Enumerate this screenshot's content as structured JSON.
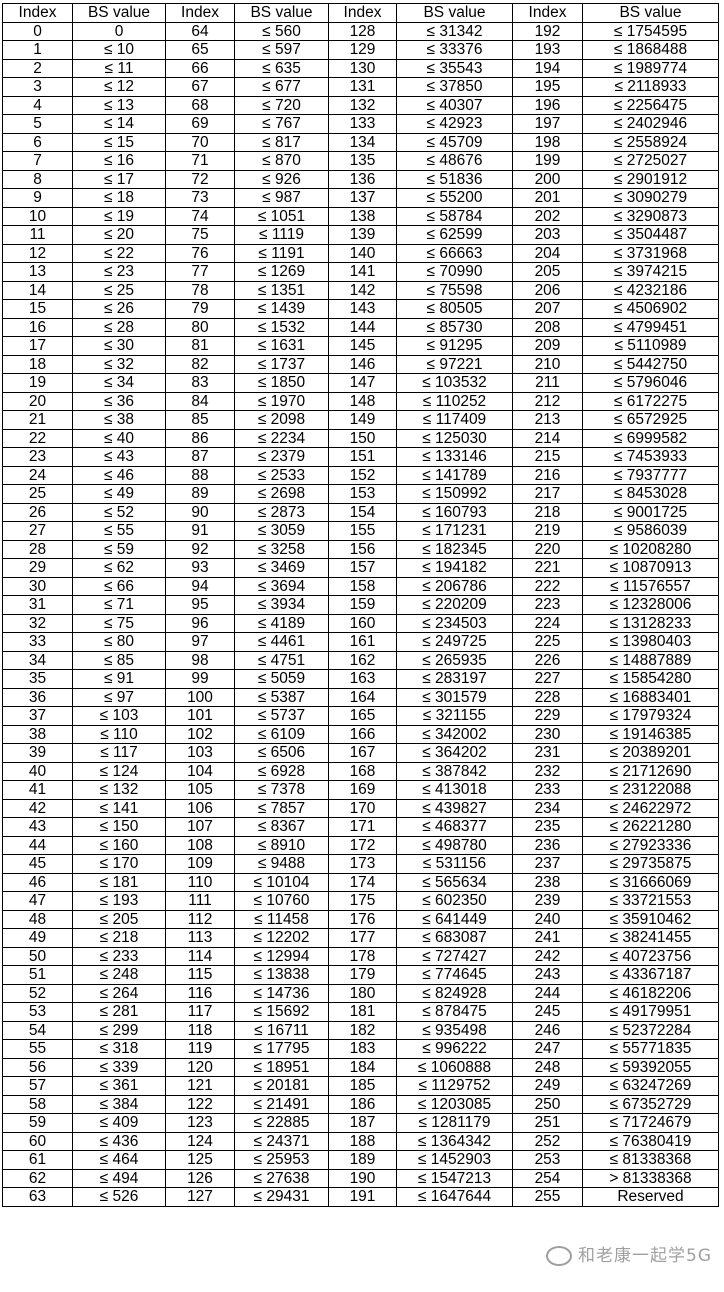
{
  "table": {
    "headers": [
      "Index",
      "BS value",
      "Index",
      "BS value",
      "Index",
      "BS value",
      "Index",
      "BS value"
    ],
    "groups": [
      {
        "indexes": [
          0,
          1,
          2,
          3,
          4,
          5,
          6,
          7,
          8,
          9,
          10,
          11,
          12,
          13,
          14,
          15,
          16,
          17,
          18,
          19,
          20,
          21,
          22,
          23,
          24,
          25,
          26,
          27,
          28,
          29,
          30,
          31,
          32,
          33,
          34,
          35,
          36,
          37,
          38,
          39,
          40,
          41,
          42,
          43,
          44,
          45,
          46,
          47,
          48,
          49,
          50,
          51,
          52,
          53,
          54,
          55,
          56,
          57,
          58,
          59,
          60,
          61,
          62,
          63
        ],
        "bs": [
          "0",
          "≤ 10",
          "≤ 11",
          "≤ 12",
          "≤ 13",
          "≤ 14",
          "≤ 15",
          "≤ 16",
          "≤ 17",
          "≤ 18",
          "≤ 19",
          "≤ 20",
          "≤ 22",
          "≤ 23",
          "≤ 25",
          "≤ 26",
          "≤ 28",
          "≤ 30",
          "≤ 32",
          "≤ 34",
          "≤ 36",
          "≤ 38",
          "≤ 40",
          "≤ 43",
          "≤ 46",
          "≤ 49",
          "≤ 52",
          "≤ 55",
          "≤ 59",
          "≤ 62",
          "≤ 66",
          "≤ 71",
          "≤ 75",
          "≤ 80",
          "≤ 85",
          "≤ 91",
          "≤ 97",
          "≤ 103",
          "≤ 110",
          "≤ 117",
          "≤ 124",
          "≤ 132",
          "≤ 141",
          "≤ 150",
          "≤ 160",
          "≤ 170",
          "≤ 181",
          "≤ 193",
          "≤ 205",
          "≤ 218",
          "≤ 233",
          "≤ 248",
          "≤ 264",
          "≤ 281",
          "≤ 299",
          "≤ 318",
          "≤ 339",
          "≤ 361",
          "≤ 384",
          "≤ 409",
          "≤ 436",
          "≤ 464",
          "≤ 494",
          "≤ 526"
        ]
      },
      {
        "indexes": [
          64,
          65,
          66,
          67,
          68,
          69,
          70,
          71,
          72,
          73,
          74,
          75,
          76,
          77,
          78,
          79,
          80,
          81,
          82,
          83,
          84,
          85,
          86,
          87,
          88,
          89,
          90,
          91,
          92,
          93,
          94,
          95,
          96,
          97,
          98,
          99,
          100,
          101,
          102,
          103,
          104,
          105,
          106,
          107,
          108,
          109,
          110,
          111,
          112,
          113,
          114,
          115,
          116,
          117,
          118,
          119,
          120,
          121,
          122,
          123,
          124,
          125,
          126,
          127
        ],
        "bs": [
          "≤ 560",
          "≤ 597",
          "≤ 635",
          "≤ 677",
          "≤ 720",
          "≤ 767",
          "≤ 817",
          "≤ 870",
          "≤ 926",
          "≤ 987",
          "≤ 1051",
          "≤ 1119",
          "≤ 1191",
          "≤ 1269",
          "≤ 1351",
          "≤ 1439",
          "≤ 1532",
          "≤ 1631",
          "≤ 1737",
          "≤ 1850",
          "≤ 1970",
          "≤ 2098",
          "≤ 2234",
          "≤ 2379",
          "≤ 2533",
          "≤ 2698",
          "≤ 2873",
          "≤ 3059",
          "≤ 3258",
          "≤ 3469",
          "≤ 3694",
          "≤ 3934",
          "≤ 4189",
          "≤ 4461",
          "≤ 4751",
          "≤ 5059",
          "≤ 5387",
          "≤ 5737",
          "≤ 6109",
          "≤ 6506",
          "≤ 6928",
          "≤ 7378",
          "≤ 7857",
          "≤ 8367",
          "≤ 8910",
          "≤ 9488",
          "≤ 10104",
          "≤ 10760",
          "≤ 11458",
          "≤ 12202",
          "≤ 12994",
          "≤ 13838",
          "≤ 14736",
          "≤ 15692",
          "≤ 16711",
          "≤ 17795",
          "≤ 18951",
          "≤ 20181",
          "≤ 21491",
          "≤ 22885",
          "≤ 24371",
          "≤ 25953",
          "≤ 27638",
          "≤ 29431"
        ]
      },
      {
        "indexes": [
          128,
          129,
          130,
          131,
          132,
          133,
          134,
          135,
          136,
          137,
          138,
          139,
          140,
          141,
          142,
          143,
          144,
          145,
          146,
          147,
          148,
          149,
          150,
          151,
          152,
          153,
          154,
          155,
          156,
          157,
          158,
          159,
          160,
          161,
          162,
          163,
          164,
          165,
          166,
          167,
          168,
          169,
          170,
          171,
          172,
          173,
          174,
          175,
          176,
          177,
          178,
          179,
          180,
          181,
          182,
          183,
          184,
          185,
          186,
          187,
          188,
          189,
          190,
          191
        ],
        "bs": [
          "≤ 31342",
          "≤ 33376",
          "≤ 35543",
          "≤ 37850",
          "≤ 40307",
          "≤ 42923",
          "≤ 45709",
          "≤ 48676",
          "≤ 51836",
          "≤ 55200",
          "≤ 58784",
          "≤ 62599",
          "≤ 66663",
          "≤ 70990",
          "≤ 75598",
          "≤ 80505",
          "≤ 85730",
          "≤ 91295",
          "≤ 97221",
          "≤ 103532",
          "≤ 110252",
          "≤ 117409",
          "≤ 125030",
          "≤ 133146",
          "≤ 141789",
          "≤ 150992",
          "≤ 160793",
          "≤ 171231",
          "≤ 182345",
          "≤ 194182",
          "≤ 206786",
          "≤ 220209",
          "≤ 234503",
          "≤ 249725",
          "≤ 265935",
          "≤ 283197",
          "≤ 301579",
          "≤ 321155",
          "≤ 342002",
          "≤ 364202",
          "≤ 387842",
          "≤ 413018",
          "≤ 439827",
          "≤ 468377",
          "≤ 498780",
          "≤ 531156",
          "≤ 565634",
          "≤ 602350",
          "≤ 641449",
          "≤ 683087",
          "≤ 727427",
          "≤ 774645",
          "≤ 824928",
          "≤ 878475",
          "≤ 935498",
          "≤ 996222",
          "≤ 1060888",
          "≤ 1129752",
          "≤ 1203085",
          "≤ 1281179",
          "≤ 1364342",
          "≤ 1452903",
          "≤ 1547213",
          "≤ 1647644"
        ]
      },
      {
        "indexes": [
          192,
          193,
          194,
          195,
          196,
          197,
          198,
          199,
          200,
          201,
          202,
          203,
          204,
          205,
          206,
          207,
          208,
          209,
          210,
          211,
          212,
          213,
          214,
          215,
          216,
          217,
          218,
          219,
          220,
          221,
          222,
          223,
          224,
          225,
          226,
          227,
          228,
          229,
          230,
          231,
          232,
          233,
          234,
          235,
          236,
          237,
          238,
          239,
          240,
          241,
          242,
          243,
          244,
          245,
          246,
          247,
          248,
          249,
          250,
          251,
          252,
          253,
          254,
          255
        ],
        "bs": [
          "≤ 1754595",
          "≤ 1868488",
          "≤ 1989774",
          "≤ 2118933",
          "≤ 2256475",
          "≤ 2402946",
          "≤ 2558924",
          "≤ 2725027",
          "≤ 2901912",
          "≤ 3090279",
          "≤ 3290873",
          "≤ 3504487",
          "≤ 3731968",
          "≤ 3974215",
          "≤ 4232186",
          "≤ 4506902",
          "≤ 4799451",
          "≤ 5110989",
          "≤ 5442750",
          "≤ 5796046",
          "≤ 6172275",
          "≤ 6572925",
          "≤ 6999582",
          "≤ 7453933",
          "≤ 7937777",
          "≤ 8453028",
          "≤ 9001725",
          "≤ 9586039",
          "≤ 10208280",
          "≤ 10870913",
          "≤ 11576557",
          "≤ 12328006",
          "≤ 13128233",
          "≤ 13980403",
          "≤ 14887889",
          "≤ 15854280",
          "≤ 16883401",
          "≤ 17979324",
          "≤ 19146385",
          "≤ 20389201",
          "≤ 21712690",
          "≤ 23122088",
          "≤ 24622972",
          "≤ 26221280",
          "≤ 27923336",
          "≤ 29735875",
          "≤ 31666069",
          "≤ 33721553",
          "≤ 35910462",
          "≤ 38241455",
          "≤ 40723756",
          "≤ 43367187",
          "≤ 46182206",
          "≤ 49179951",
          "≤ 52372284",
          "≤ 55771835",
          "≤ 59392055",
          "≤ 63247269",
          "≤ 67352729",
          "≤ 71724679",
          "≤ 76380419",
          "≤ 81338368",
          "> 81338368",
          "Reserved"
        ]
      }
    ]
  },
  "watermark": {
    "text": "和老康一起学5G",
    "icon": "wechat-icon"
  }
}
